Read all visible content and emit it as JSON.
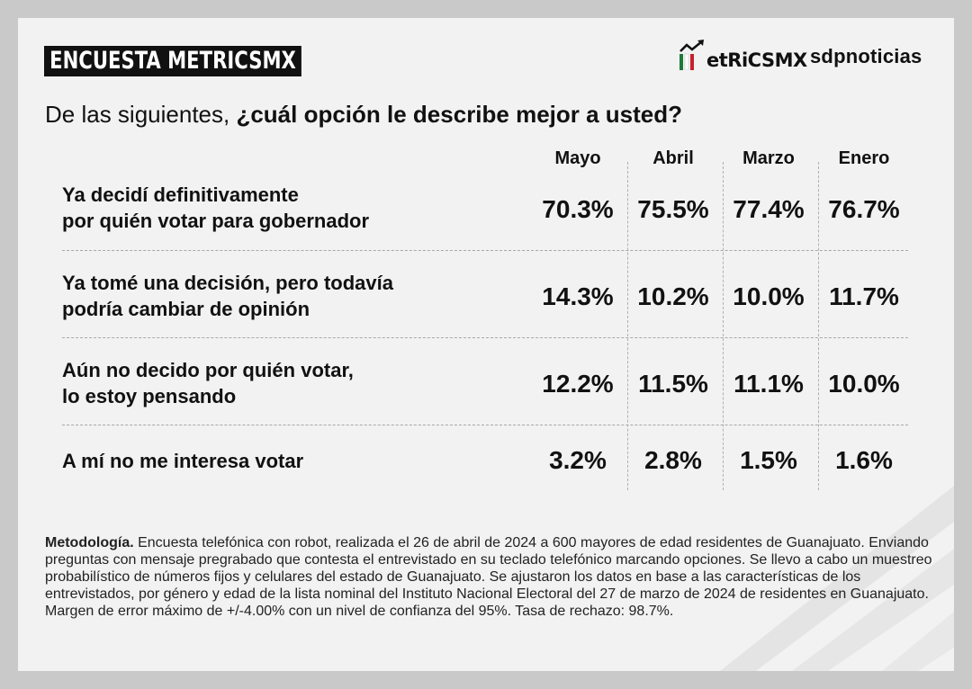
{
  "header": {
    "badge": "ENCUESTA METRICSMX",
    "logo_metrics": "MetRiCSMX",
    "logo_metrics_rest": "etRiCSMX",
    "logo_sdp": "sdpnoticias"
  },
  "question": {
    "prefix": "De las siguientes, ",
    "bold": "¿cuál opción le describe mejor a usted?"
  },
  "chart_data": {
    "type": "table",
    "columns": [
      "Mayo",
      "Abril",
      "Marzo",
      "Enero"
    ],
    "rows": [
      {
        "label_line1": "Ya decidí definitivamente",
        "label_line2": "por quién votar para gobernador",
        "values": [
          "70.3%",
          "75.5%",
          "77.4%",
          "76.7%"
        ]
      },
      {
        "label_line1": "Ya tomé una decisión, pero todavía",
        "label_line2": "podría cambiar de opinión",
        "values": [
          "14.3%",
          "10.2%",
          "10.0%",
          "11.7%"
        ]
      },
      {
        "label_line1": "Aún no decido por quién votar,",
        "label_line2": "lo estoy pensando",
        "values": [
          "12.2%",
          "11.5%",
          "11.1%",
          "10.0%"
        ]
      },
      {
        "label_line1": "A mí no me interesa votar",
        "label_line2": "",
        "values": [
          "3.2%",
          "2.8%",
          "1.5%",
          "1.6%"
        ]
      }
    ]
  },
  "methodology": {
    "title": "Metodología.",
    "text": " Encuesta telefónica con robot, realizada el 26 de abril de 2024 a 600 mayores de edad residentes de Guanajuato. Enviando preguntas con mensaje pregrabado que contesta el entrevistado en su teclado telefónico marcando opciones. Se llevo a cabo un muestreo probabilístico de números fijos y celulares del estado de Guanajuato. Se ajustaron los datos en base a las características de los entrevistados, por género y edad de la lista nominal del Instituto Nacional Electoral del 27 de marzo de 2024 de residentes en Guanajuato. Margen de error máximo de +/-4.00% con un nivel de confianza del 95%. Tasa de rechazo: 98.7%."
  },
  "colors": {
    "background": "#c9c9c9",
    "card": "#f2f2f2",
    "text": "#111111",
    "flag_green": "#1f7a3a",
    "flag_red": "#c8202c"
  }
}
